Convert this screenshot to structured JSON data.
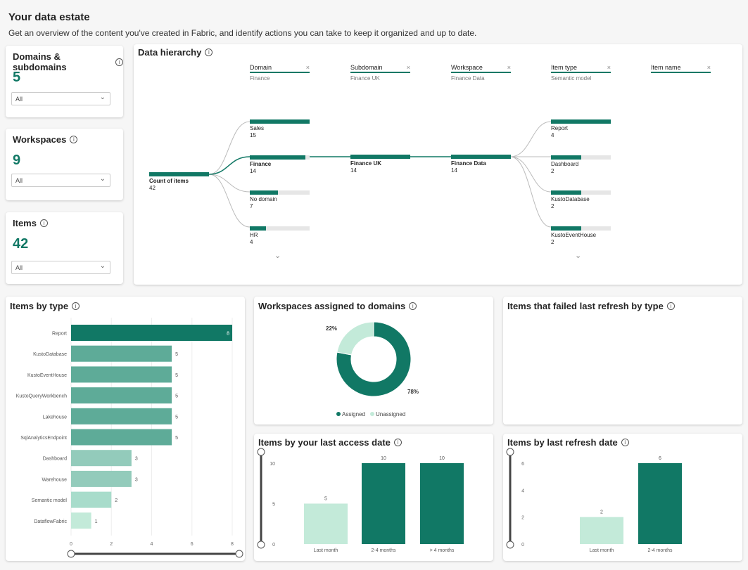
{
  "header": {
    "title": "Your data estate",
    "subtitle": "Get an overview of the content you've created in Fabric, and identify actions you can take to keep it organized and up to date."
  },
  "kpis": [
    {
      "title": "Domains & subdomains",
      "value": "5",
      "filter": "All"
    },
    {
      "title": "Workspaces",
      "value": "9",
      "filter": "All"
    },
    {
      "title": "Items",
      "value": "42",
      "filter": "All"
    }
  ],
  "hierarchy": {
    "title": "Data hierarchy",
    "columns": [
      {
        "label": "Domain",
        "value": "Finance"
      },
      {
        "label": "Subdomain",
        "value": "Finance UK"
      },
      {
        "label": "Workspace",
        "value": "Finance Data"
      },
      {
        "label": "Item type",
        "value": "Semantic model"
      },
      {
        "label": "Item name",
        "value": ""
      }
    ],
    "root": {
      "label": "Count of items",
      "value": 42
    },
    "domains": [
      {
        "label": "Sales",
        "value": 15
      },
      {
        "label": "Finance",
        "value": 14
      },
      {
        "label": "No domain",
        "value": 7
      },
      {
        "label": "HR",
        "value": 4
      }
    ],
    "subdomain": {
      "label": "Finance UK",
      "value": 14
    },
    "workspace": {
      "label": "Finance Data",
      "value": 14
    },
    "item_types": [
      {
        "label": "Report",
        "value": 4
      },
      {
        "label": "Dashboard",
        "value": 2
      },
      {
        "label": "KustoDatabase",
        "value": 2
      },
      {
        "label": "KustoEventHouse",
        "value": 2
      }
    ]
  },
  "chart_data": [
    {
      "type": "bar",
      "orientation": "horizontal",
      "title": "Items by type",
      "categories": [
        "Report",
        "KustoDatabase",
        "KustoEventHouse",
        "KustoQueryWorkbench",
        "Lakehouse",
        "SqlAnalyticsEndpoint",
        "Dashboard",
        "Warehouse",
        "Semantic model",
        "DataflowFabric"
      ],
      "values": [
        8,
        5,
        5,
        5,
        5,
        5,
        3,
        3,
        2,
        1
      ],
      "xlim": [
        0,
        8
      ],
      "xticks": [
        "0",
        "2",
        "4",
        "6",
        "8"
      ]
    },
    {
      "type": "pie",
      "title": "Workspaces assigned to domains",
      "categories": [
        "Assigned",
        "Unassigned"
      ],
      "values": [
        78,
        22
      ],
      "labels": [
        "78%",
        "22%"
      ],
      "colors": [
        "#117865",
        "#c3ead9"
      ]
    },
    {
      "type": "bar",
      "title": "Items that failed last refresh by type",
      "categories": [],
      "values": []
    },
    {
      "type": "bar",
      "title": "Items by your last access date",
      "categories": [
        "Last month",
        "2-4 months",
        "> 4 months"
      ],
      "values": [
        5,
        10,
        10
      ],
      "ylim": [
        0,
        10
      ],
      "yticks": [
        "0",
        "5",
        "10"
      ]
    },
    {
      "type": "bar",
      "title": "Items by last refresh date",
      "categories": [
        "Last month",
        "2-4 months"
      ],
      "values": [
        2,
        6
      ],
      "ylim": [
        0,
        6
      ],
      "yticks": [
        "0",
        "2",
        "4",
        "6"
      ]
    }
  ],
  "colors": {
    "dark": "#117865",
    "mid": "#5eab98",
    "light": "#93cbbb",
    "lighter": "#a8dccb",
    "lightest": "#c3ead9"
  }
}
